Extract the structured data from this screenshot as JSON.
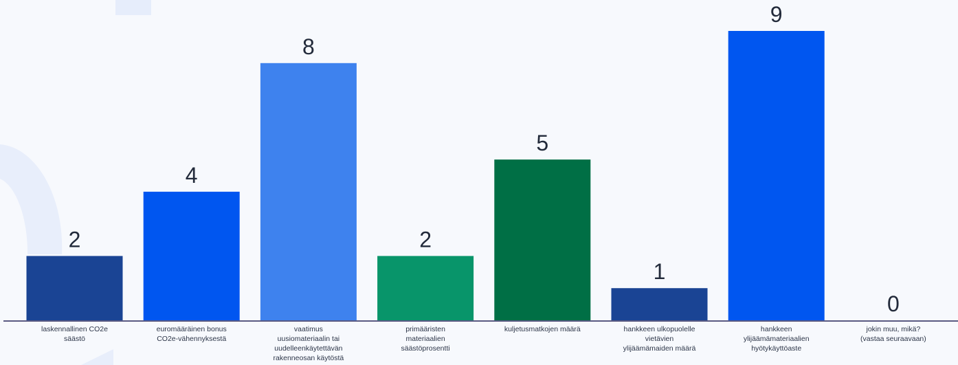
{
  "chart_data": {
    "type": "bar",
    "categories": [
      [
        "laskennallinen CO2e",
        "säästö"
      ],
      [
        "euromääräinen bonus",
        "CO2e-vähennyksestä"
      ],
      [
        "vaatimus",
        "uusiomateriaalin tai",
        "uudelleenkäytettävän",
        "rakenneosan käytöstä"
      ],
      [
        "primääristen",
        "materiaalien",
        "säästöprosentti"
      ],
      [
        "kuljetusmatkojen määrä"
      ],
      [
        "hankkeen ulkopuolelle",
        "vietävien",
        "ylijäämämaiden määrä"
      ],
      [
        "hankkeen",
        "ylijäämämateriaalien",
        "hyötykäyttöaste"
      ],
      [
        "jokin muu, mikä?",
        "(vastaa seuraavaan)"
      ]
    ],
    "values": [
      2,
      4,
      8,
      2,
      5,
      1,
      9,
      0
    ],
    "colors": [
      "#1a4494",
      "#0056f0",
      "#3e82ee",
      "#08956a",
      "#006f45",
      "#1a4494",
      "#0056f0",
      "#3e82ee"
    ],
    "ylim": [
      0,
      9
    ],
    "axis_color": "#5a5a82",
    "grid": false,
    "legend": "none"
  }
}
